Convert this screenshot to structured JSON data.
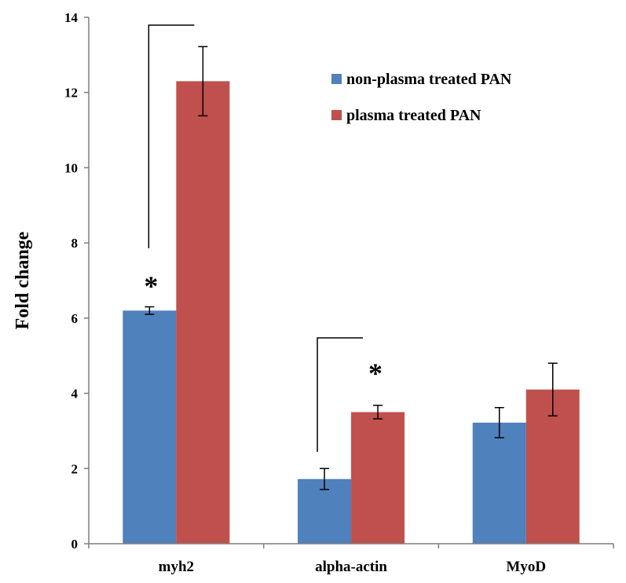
{
  "chart_data": {
    "type": "bar",
    "categories": [
      "myh2",
      "alpha-actin",
      "MyoD"
    ],
    "series": [
      {
        "name": "non-plasma treated PAN",
        "color": "#4F81BD",
        "values": [
          6.2,
          1.72,
          3.22
        ],
        "errors": [
          0.1,
          0.28,
          0.4
        ]
      },
      {
        "name": "plasma treated PAN",
        "color": "#C0504D",
        "values": [
          12.3,
          3.5,
          4.1
        ],
        "errors": [
          0.92,
          0.18,
          0.7
        ]
      }
    ],
    "ylabel": "Fold change",
    "ylim": [
      0,
      14
    ],
    "yticks": [
      "0",
      "2",
      "4",
      "6",
      "8",
      "10",
      "12",
      "14"
    ],
    "grid": false,
    "legend_position": "top-right",
    "annotations": [
      {
        "category": "myh2",
        "text": "*"
      },
      {
        "category": "alpha-actin",
        "text": "*"
      }
    ]
  }
}
